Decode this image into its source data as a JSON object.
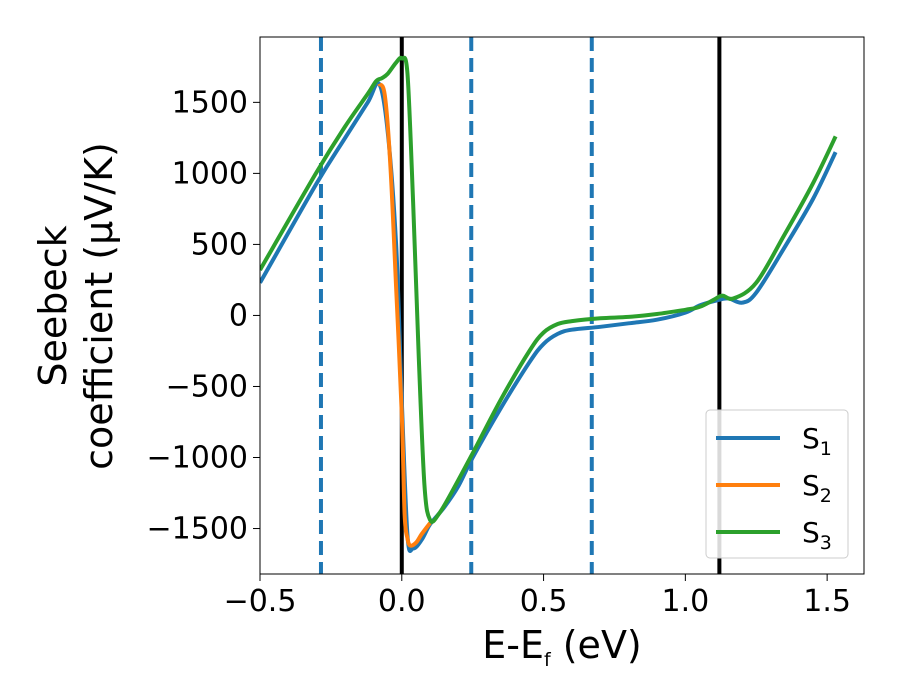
{
  "chart_data": {
    "type": "line",
    "xlabel": {
      "main": "E-E",
      "sub": "f",
      "unit": " (eV)"
    },
    "ylabel": {
      "line1": "Seebeck",
      "line2": "coefficient  (μV/K)"
    },
    "xlim": [
      -0.5,
      1.63
    ],
    "ylim": [
      -1820,
      1960
    ],
    "xticks": [
      -0.5,
      0.0,
      0.5,
      1.0,
      1.5
    ],
    "xtick_labels": [
      "−0.5",
      "0.0",
      "0.5",
      "1.0",
      "1.5"
    ],
    "yticks": [
      -1500,
      -1000,
      -500,
      0,
      500,
      1000,
      1500
    ],
    "ytick_labels": [
      "−1500",
      "−1000",
      "−500",
      "0",
      "500",
      "1000",
      "1500"
    ],
    "grid": false,
    "legend_placement": "lower-right",
    "vlines": [
      {
        "x": 0.0,
        "style": "solid",
        "color": "#000000"
      },
      {
        "x": 1.12,
        "style": "solid",
        "color": "#000000"
      },
      {
        "x": -0.285,
        "style": "dashed",
        "color": "#1f77b4"
      },
      {
        "x": 0.245,
        "style": "dashed",
        "color": "#1f77b4"
      },
      {
        "x": 0.67,
        "style": "dashed",
        "color": "#1f77b4"
      }
    ],
    "series": [
      {
        "name": "S",
        "sub": "1",
        "color": "#1f77b4",
        "points": [
          [
            -0.5,
            230
          ],
          [
            -0.3,
            930
          ],
          [
            -0.2,
            1250
          ],
          [
            -0.12,
            1500
          ],
          [
            -0.08,
            1630
          ],
          [
            -0.05,
            1300
          ],
          [
            -0.02,
            500
          ],
          [
            0.0,
            -600
          ],
          [
            0.02,
            -1550
          ],
          [
            0.04,
            -1640
          ],
          [
            0.07,
            -1580
          ],
          [
            0.1,
            -1470
          ],
          [
            0.15,
            -1350
          ],
          [
            0.2,
            -1200
          ],
          [
            0.25,
            -1000
          ],
          [
            0.35,
            -650
          ],
          [
            0.45,
            -330
          ],
          [
            0.5,
            -200
          ],
          [
            0.55,
            -130
          ],
          [
            0.6,
            -100
          ],
          [
            0.7,
            -80
          ],
          [
            0.8,
            -55
          ],
          [
            0.9,
            -30
          ],
          [
            1.0,
            20
          ],
          [
            1.05,
            70
          ],
          [
            1.1,
            100
          ],
          [
            1.15,
            120
          ],
          [
            1.2,
            90
          ],
          [
            1.25,
            160
          ],
          [
            1.35,
            480
          ],
          [
            1.45,
            820
          ],
          [
            1.53,
            1150
          ]
        ]
      },
      {
        "name": "S",
        "sub": "2",
        "color": "#ff7f0e",
        "points": [
          [
            -0.08,
            1630
          ],
          [
            -0.06,
            1550
          ],
          [
            -0.04,
            1050
          ],
          [
            -0.02,
            200
          ],
          [
            0.0,
            -700
          ],
          [
            0.01,
            -1400
          ],
          [
            0.02,
            -1570
          ],
          [
            0.03,
            -1620
          ],
          [
            0.05,
            -1600
          ],
          [
            0.07,
            -1540
          ],
          [
            0.1,
            -1460
          ]
        ]
      },
      {
        "name": "S",
        "sub": "3",
        "color": "#2ca02c",
        "points": [
          [
            -0.5,
            320
          ],
          [
            -0.3,
            1010
          ],
          [
            -0.2,
            1330
          ],
          [
            -0.12,
            1560
          ],
          [
            -0.09,
            1650
          ],
          [
            -0.07,
            1670
          ],
          [
            -0.05,
            1700
          ],
          [
            -0.02,
            1780
          ],
          [
            0.0,
            1810
          ],
          [
            0.02,
            1700
          ],
          [
            0.04,
            800
          ],
          [
            0.06,
            -300
          ],
          [
            0.08,
            -1200
          ],
          [
            0.1,
            -1440
          ],
          [
            0.13,
            -1400
          ],
          [
            0.18,
            -1230
          ],
          [
            0.25,
            -970
          ],
          [
            0.35,
            -590
          ],
          [
            0.45,
            -250
          ],
          [
            0.5,
            -120
          ],
          [
            0.55,
            -60
          ],
          [
            0.6,
            -40
          ],
          [
            0.7,
            -20
          ],
          [
            0.8,
            -10
          ],
          [
            0.9,
            10
          ],
          [
            1.0,
            40
          ],
          [
            1.05,
            60
          ],
          [
            1.1,
            110
          ],
          [
            1.13,
            140
          ],
          [
            1.17,
            120
          ],
          [
            1.25,
            230
          ],
          [
            1.35,
            570
          ],
          [
            1.45,
            930
          ],
          [
            1.53,
            1260
          ]
        ]
      }
    ]
  }
}
